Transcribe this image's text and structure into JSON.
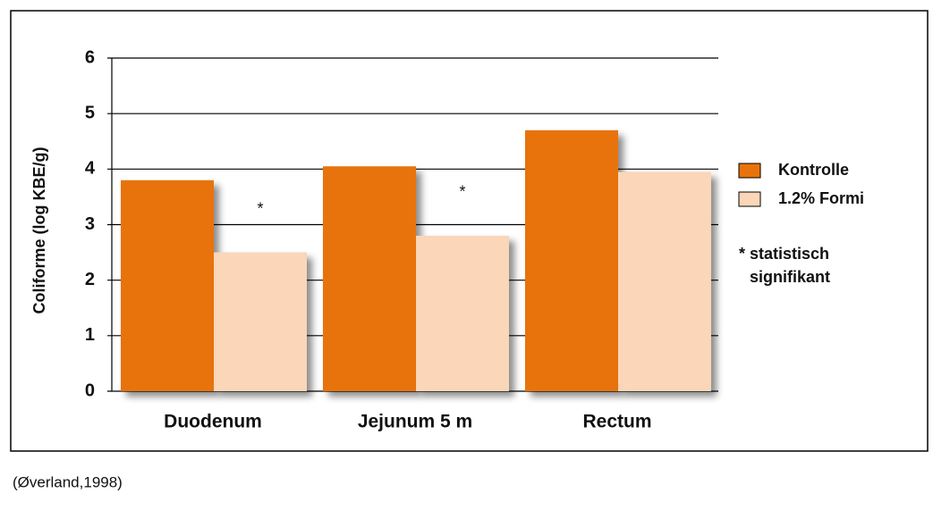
{
  "chart_data": {
    "type": "bar",
    "y_label": "Coliforme (log KBE/g)",
    "categories": [
      "Duodenum",
      "Jejunum 5 m",
      "Rectum"
    ],
    "series": [
      {
        "name": "Kontrolle",
        "color": "#e8730a",
        "values": [
          3.8,
          4.05,
          4.7
        ]
      },
      {
        "name": "1.2% Formi",
        "color": "#fbd6b8",
        "values": [
          2.5,
          2.8,
          3.95
        ]
      }
    ],
    "annotations": [
      "*",
      "*",
      null
    ],
    "note": [
      "* statistisch",
      "signifikant"
    ],
    "ylim": [
      0,
      6
    ],
    "yticks": [
      0,
      1,
      2,
      3,
      4,
      5,
      6
    ],
    "grid": true
  },
  "source": "(Øverland,1998)"
}
